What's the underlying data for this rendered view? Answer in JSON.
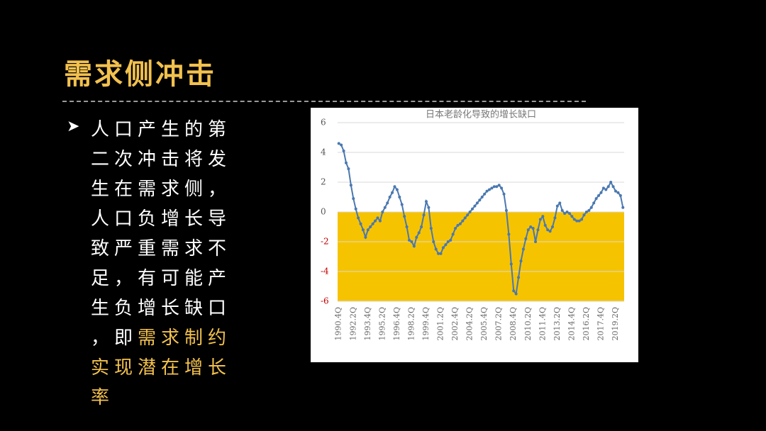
{
  "title": "需求侧冲击",
  "bullet": {
    "text": "人口产生的第二次冲击将发生在需求侧，人口负增长导致严重需求不足，有可能产生负增长缺口，即",
    "highlight": "需求制约实现潜在增长率"
  },
  "chart_data": {
    "type": "line",
    "title": "日本老龄化导致的增长缺口",
    "categories": [
      "1990.4Q",
      null,
      null,
      null,
      null,
      null,
      "1992.2Q",
      null,
      null,
      null,
      null,
      null,
      "1993.4Q",
      null,
      null,
      null,
      null,
      null,
      "1995.2Q",
      null,
      null,
      null,
      null,
      null,
      "1996.4Q",
      null,
      null,
      null,
      null,
      null,
      "1998.2Q",
      null,
      null,
      null,
      null,
      null,
      "1999.4Q",
      null,
      null,
      null,
      null,
      null,
      "2001.2Q",
      null,
      null,
      null,
      null,
      null,
      "2002.4Q",
      null,
      null,
      null,
      null,
      null,
      "2004.2Q",
      null,
      null,
      null,
      null,
      null,
      "2005.4Q",
      null,
      null,
      null,
      null,
      null,
      "2007.2Q",
      null,
      null,
      null,
      null,
      null,
      "2008.4Q",
      null,
      null,
      null,
      null,
      null,
      "2010.2Q",
      null,
      null,
      null,
      null,
      null,
      "2011.4Q",
      null,
      null,
      null,
      null,
      null,
      "2013.2Q",
      null,
      null,
      null,
      null,
      null,
      "2014.4Q",
      null,
      null,
      null,
      null,
      null,
      "2016.2Q",
      null,
      null,
      null,
      null,
      null,
      "2017.4Q",
      null,
      null,
      null,
      null,
      null,
      "2019.2Q",
      null,
      null,
      null
    ],
    "series": [
      {
        "name": "增长缺口",
        "color": "#4a78b0",
        "values": [
          4.6,
          4.5,
          4.1,
          3.3,
          2.9,
          1.8,
          0.9,
          0.2,
          -0.4,
          -0.8,
          -1.2,
          -1.7,
          -1.2,
          -1.0,
          -0.8,
          -0.6,
          -0.4,
          -0.6,
          0.0,
          0.3,
          0.6,
          1.0,
          1.3,
          1.7,
          1.5,
          1.0,
          0.5,
          -0.3,
          -1.0,
          -1.9,
          -2.0,
          -2.3,
          -1.7,
          -1.4,
          -1.0,
          -0.2,
          0.7,
          0.3,
          -1.1,
          -2.0,
          -2.5,
          -2.8,
          -2.8,
          -2.4,
          -2.2,
          -2.0,
          -1.9,
          -1.5,
          -1.1,
          -0.9,
          -0.8,
          -0.6,
          -0.4,
          -0.2,
          0.0,
          0.2,
          0.4,
          0.6,
          0.8,
          1.0,
          1.2,
          1.4,
          1.5,
          1.6,
          1.7,
          1.7,
          1.8,
          1.6,
          1.2,
          0.1,
          -1.5,
          -3.5,
          -5.3,
          -5.5,
          -4.4,
          -3.3,
          -2.5,
          -1.8,
          -1.2,
          -1.0,
          -1.1,
          -2.0,
          -1.2,
          -0.5,
          -0.3,
          -0.9,
          -1.2,
          -1.3,
          -1.0,
          -0.4,
          0.4,
          0.6,
          0.1,
          -0.1,
          0.0,
          -0.1,
          -0.3,
          -0.5,
          -0.6,
          -0.6,
          -0.5,
          -0.2,
          0.0,
          0.1,
          0.3,
          0.6,
          0.9,
          1.1,
          1.3,
          1.6,
          1.5,
          1.7,
          2.0,
          1.7,
          1.4,
          1.3,
          1.1,
          0.3
        ]
      }
    ],
    "ylim": [
      -6,
      6
    ],
    "yticks": [
      -6,
      -4,
      -2,
      0,
      2,
      4,
      6
    ],
    "grid": true,
    "shaded_range": [
      -6,
      0
    ],
    "shaded_color": "#f6c300",
    "negative_tick_color": "#c00000"
  }
}
